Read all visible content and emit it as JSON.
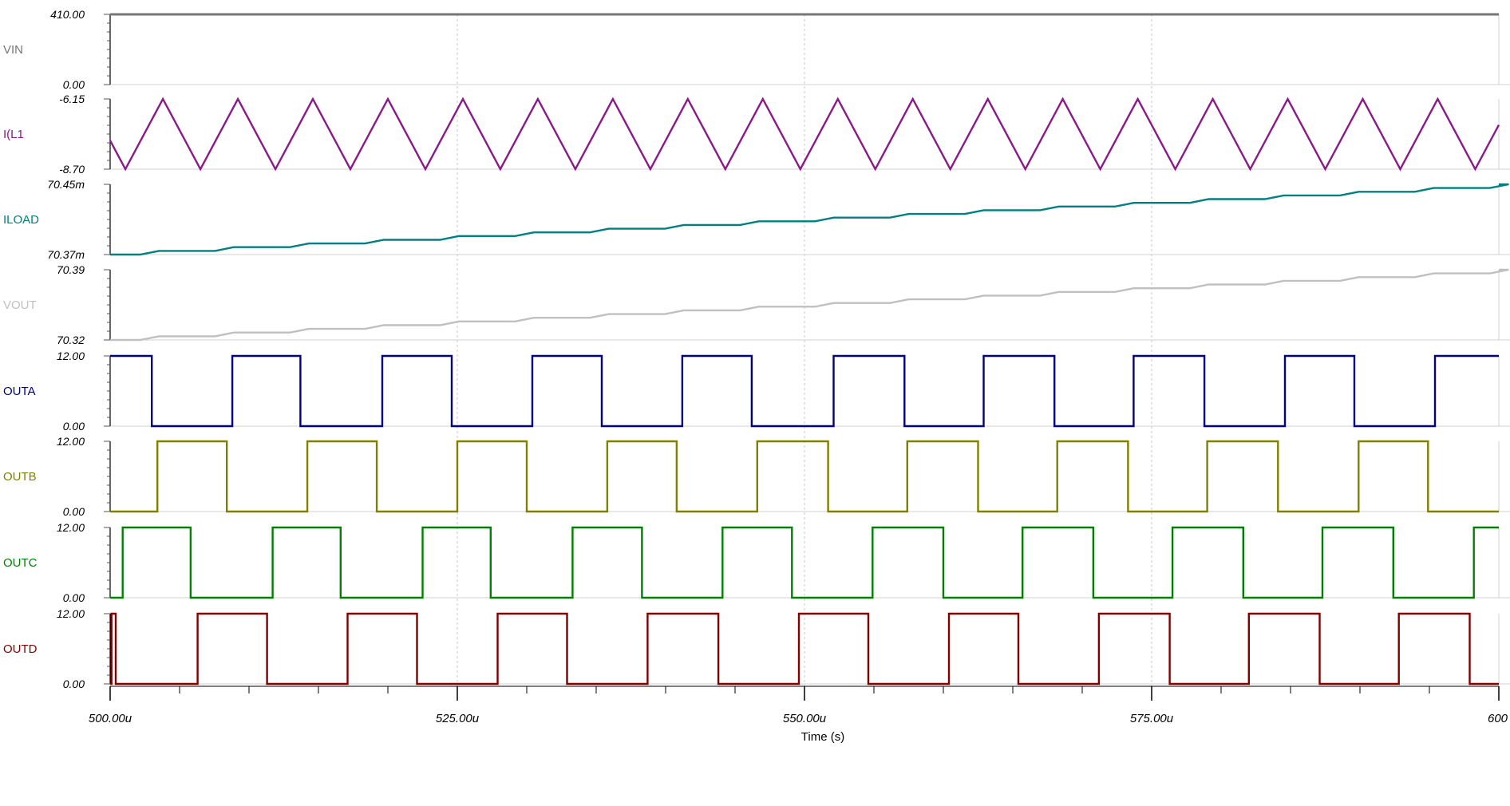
{
  "chart_data": {
    "type": "line",
    "xlabel": "Time (s)",
    "x_ticks": [
      "500.00u",
      "525.00u",
      "550.00u",
      "575.00u",
      "600"
    ],
    "xlim": [
      500,
      600
    ],
    "x_unit": "us",
    "grid": true,
    "panels": [
      {
        "name": "VIN",
        "color": "#777777",
        "ymax_label": "410.00",
        "ymin_label": "0.00",
        "ylim": [
          0,
          410
        ],
        "kind": "const",
        "value": 410
      },
      {
        "name": "I(L1",
        "color": "#8B1A89",
        "ymax_label": "-6.15",
        "ymin_label": "-8.70",
        "ylim": [
          -8.7,
          -6.15
        ],
        "kind": "triangle",
        "period": 5.4,
        "first_min": 501.1,
        "rise_fraction": 0.5
      },
      {
        "name": "ILOAD",
        "color": "#008080",
        "ymax_label": "70.45m",
        "ymin_label": "70.37m",
        "ylim": [
          0.07037,
          0.07045
        ],
        "kind": "ramp",
        "start": 0.07037,
        "end": 0.07045,
        "period": 5.4
      },
      {
        "name": "VOUT",
        "color": "#C0C0C0",
        "ymax_label": "70.39",
        "ymin_label": "70.32",
        "ylim": [
          70.32,
          70.39
        ],
        "kind": "ramp",
        "start": 70.32,
        "end": 70.39,
        "period": 5.4
      },
      {
        "name": "OUTA",
        "color": "#000080",
        "ymax_label": "12.00",
        "ymin_label": "0.00",
        "ylim": [
          0,
          12
        ],
        "kind": "pulse",
        "high_intervals": [
          [
            500,
            503
          ],
          [
            508.8,
            513.7
          ],
          [
            519.6,
            524.6
          ],
          [
            530.4,
            535.4
          ],
          [
            541.2,
            546.2
          ],
          [
            552.1,
            557.2
          ],
          [
            562.9,
            568
          ],
          [
            573.7,
            578.8
          ],
          [
            584.6,
            589.6
          ],
          [
            595.4,
            600
          ]
        ]
      },
      {
        "name": "OUTB",
        "color": "#808000",
        "ymax_label": "12.00",
        "ymin_label": "0.00",
        "ylim": [
          0,
          12
        ],
        "kind": "pulse",
        "high_intervals": [
          [
            503.4,
            508.4
          ],
          [
            514.2,
            519.2
          ],
          [
            525,
            530
          ],
          [
            535.8,
            540.8
          ],
          [
            546.6,
            551.7
          ],
          [
            557.4,
            562.5
          ],
          [
            568.2,
            573.3
          ],
          [
            579,
            584.1
          ],
          [
            589.9,
            594.9
          ]
        ]
      },
      {
        "name": "OUTC",
        "color": "#008000",
        "ymax_label": "12.00",
        "ymin_label": "0.00",
        "ylim": [
          0,
          12
        ],
        "kind": "pulse",
        "high_intervals": [
          [
            500.9,
            505.8
          ],
          [
            511.7,
            516.6
          ],
          [
            522.5,
            527.4
          ],
          [
            533.3,
            538.3
          ],
          [
            544.1,
            549.1
          ],
          [
            554.9,
            560
          ],
          [
            565.7,
            570.8
          ],
          [
            576.5,
            581.6
          ],
          [
            587.3,
            592.4
          ],
          [
            598.2,
            600
          ]
        ]
      },
      {
        "name": "OUTD",
        "color": "#800000",
        "ymax_label": "12.00",
        "ymin_label": "0.00",
        "ylim": [
          0,
          12
        ],
        "kind": "pulse",
        "high_intervals": [
          [
            500.1,
            500.4
          ],
          [
            506.3,
            511.3
          ],
          [
            517.1,
            522.1
          ],
          [
            527.9,
            532.9
          ],
          [
            538.7,
            543.8
          ],
          [
            549.6,
            554.6
          ],
          [
            560.4,
            565.4
          ],
          [
            571.2,
            576.3
          ],
          [
            582,
            587.1
          ],
          [
            592.8,
            597.9
          ]
        ]
      }
    ]
  }
}
